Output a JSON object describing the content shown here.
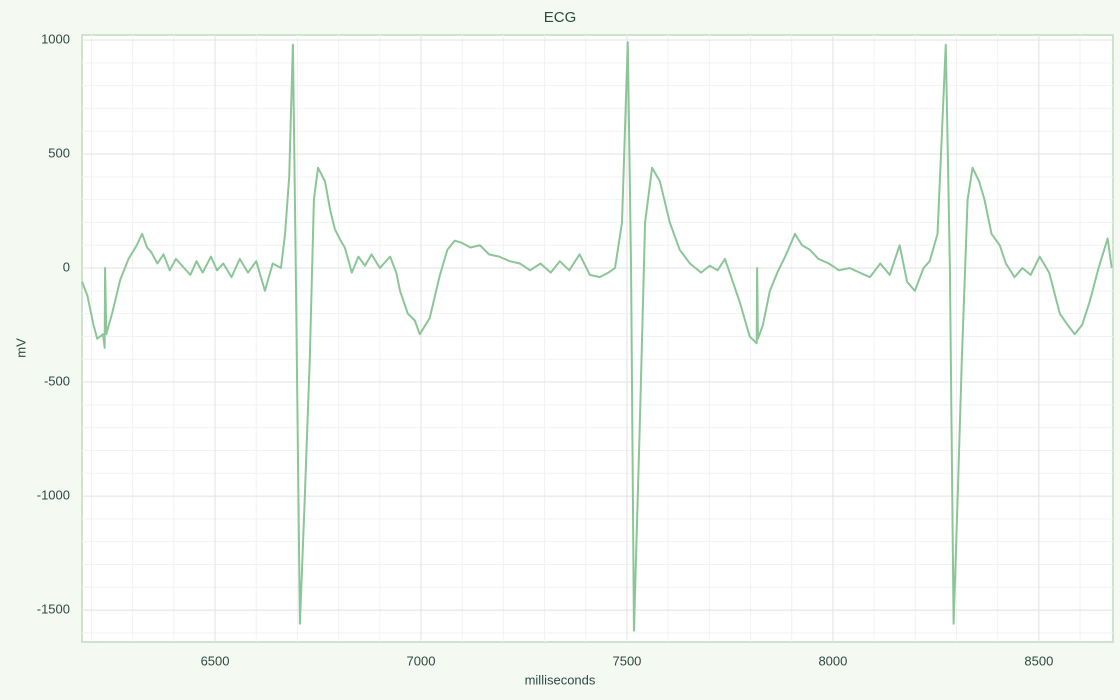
{
  "chart_data": {
    "type": "line",
    "title": "ECG",
    "xlabel": "milliseconds",
    "ylabel": "mV",
    "x": [
      6177,
      6190,
      6205,
      6214,
      6228,
      6232,
      6233,
      6236,
      6250,
      6270,
      6290,
      6310,
      6323,
      6335,
      6345,
      6360,
      6375,
      6390,
      6405,
      6420,
      6440,
      6455,
      6470,
      6490,
      6505,
      6520,
      6540,
      6560,
      6580,
      6600,
      6621,
      6640,
      6660,
      6670,
      6680,
      6689,
      6696,
      6706,
      6718,
      6730,
      6740,
      6750,
      6767,
      6780,
      6791,
      6805,
      6815,
      6832,
      6848,
      6864,
      6880,
      6900,
      6925,
      6940,
      6949,
      6968,
      6985,
      6997,
      7021,
      7046,
      7064,
      7082,
      7100,
      7120,
      7143,
      7165,
      7190,
      7215,
      7240,
      7265,
      7290,
      7315,
      7337,
      7360,
      7385,
      7410,
      7434,
      7455,
      7471,
      7488,
      7502,
      7510,
      7517,
      7531,
      7544,
      7561,
      7580,
      7604,
      7628,
      7653,
      7680,
      7701,
      7720,
      7738,
      7755,
      7774,
      7798,
      7815,
      7816,
      7818,
      7830,
      7847,
      7865,
      7884,
      7908,
      7925,
      7944,
      7965,
      7990,
      8015,
      8041,
      8065,
      8090,
      8115,
      8138,
      8162,
      8180,
      8199,
      8220,
      8235,
      8254,
      8274,
      8284,
      8293,
      8303,
      8313,
      8327,
      8339,
      8355,
      8368,
      8385,
      8405,
      8420,
      8441,
      8460,
      8480,
      8502,
      8525,
      8551,
      8570,
      8587,
      8605,
      8623,
      8645,
      8667,
      8677
    ],
    "series": [
      {
        "name": "ECG",
        "color": "#8cc698",
        "values": [
          -60,
          -120,
          -250,
          -310,
          -290,
          -350,
          0,
          -290,
          -200,
          -50,
          40,
          100,
          150,
          90,
          70,
          20,
          60,
          -10,
          40,
          10,
          -30,
          30,
          -20,
          50,
          -10,
          20,
          -40,
          40,
          -20,
          30,
          -100,
          20,
          0,
          150,
          400,
          980,
          0,
          -1560,
          -1000,
          -400,
          300,
          440,
          380,
          250,
          170,
          120,
          90,
          -20,
          50,
          10,
          60,
          0,
          50,
          -20,
          -100,
          -200,
          -230,
          -290,
          -220,
          -30,
          80,
          120,
          110,
          90,
          100,
          60,
          50,
          30,
          20,
          -10,
          20,
          -20,
          30,
          -10,
          60,
          -30,
          -40,
          -20,
          0,
          200,
          990,
          0,
          -1590,
          -700,
          200,
          440,
          380,
          200,
          80,
          20,
          -20,
          10,
          -10,
          40,
          -50,
          -150,
          -300,
          -330,
          0,
          -310,
          -250,
          -100,
          -20,
          50,
          150,
          100,
          80,
          40,
          20,
          -10,
          0,
          -20,
          -40,
          20,
          -30,
          100,
          -60,
          -100,
          0,
          30,
          150,
          980,
          0,
          -1560,
          -1000,
          -400,
          300,
          440,
          380,
          300,
          150,
          100,
          20,
          -40,
          0,
          -30,
          50,
          -20,
          -200,
          -250,
          -290,
          -250,
          -150,
          0,
          130,
          0
        ]
      }
    ],
    "xlim": [
      6177,
      8680
    ],
    "ylim": [
      -1640,
      1022
    ],
    "xticks": [
      6500,
      7000,
      7500,
      8000,
      8500
    ],
    "yticks": [
      -1500,
      -1000,
      -500,
      0,
      500,
      1000
    ],
    "grid": true
  }
}
